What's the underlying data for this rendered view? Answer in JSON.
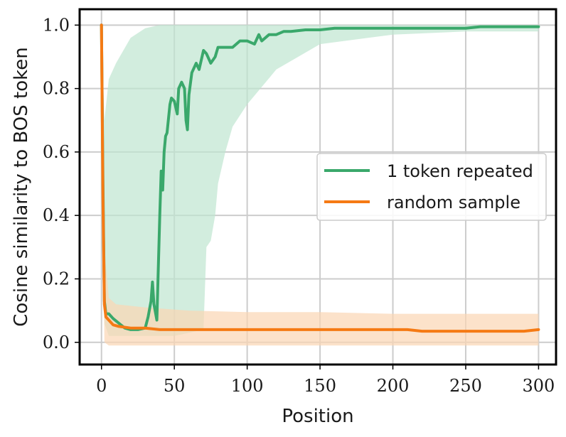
{
  "chart_data": {
    "type": "line",
    "title": "",
    "xlabel": "Position",
    "ylabel": "Cosine similarity to BOS token",
    "xlim": [
      -15,
      312
    ],
    "ylim": [
      -0.07,
      1.05
    ],
    "xticks": [
      0,
      50,
      100,
      150,
      200,
      250,
      300
    ],
    "yticks": [
      0.0,
      0.2,
      0.4,
      0.6,
      0.8,
      1.0
    ],
    "xtick_labels": [
      "0",
      "50",
      "100",
      "150",
      "200",
      "250",
      "300"
    ],
    "ytick_labels": [
      "0.0",
      "0.2",
      "0.4",
      "0.6",
      "0.8",
      "1.0"
    ],
    "grid": true,
    "legend_position": "center-right",
    "series": [
      {
        "name": "1 token repeated",
        "color": "#3aa86b",
        "band_color": "#bfe6d0",
        "x": [
          0,
          1,
          2,
          3,
          5,
          8,
          12,
          16,
          20,
          25,
          30,
          32,
          34,
          35,
          36,
          38,
          40,
          41,
          42,
          43,
          44,
          45,
          47,
          48,
          50,
          52,
          53,
          55,
          57,
          58,
          59,
          60,
          62,
          65,
          67,
          70,
          72,
          75,
          78,
          80,
          85,
          90,
          95,
          100,
          105,
          108,
          110,
          115,
          120,
          125,
          130,
          140,
          150,
          160,
          170,
          180,
          190,
          200,
          210,
          220,
          230,
          240,
          250,
          260,
          270,
          280,
          290,
          300
        ],
        "values": [
          1.0,
          0.5,
          0.13,
          0.09,
          0.09,
          0.075,
          0.06,
          0.045,
          0.04,
          0.04,
          0.045,
          0.08,
          0.13,
          0.19,
          0.12,
          0.07,
          0.4,
          0.54,
          0.48,
          0.6,
          0.65,
          0.66,
          0.75,
          0.77,
          0.76,
          0.72,
          0.8,
          0.82,
          0.8,
          0.7,
          0.67,
          0.78,
          0.85,
          0.88,
          0.86,
          0.92,
          0.91,
          0.88,
          0.9,
          0.93,
          0.93,
          0.93,
          0.95,
          0.95,
          0.94,
          0.97,
          0.95,
          0.97,
          0.97,
          0.98,
          0.98,
          0.985,
          0.985,
          0.99,
          0.99,
          0.99,
          0.99,
          0.99,
          0.99,
          0.99,
          0.99,
          0.99,
          0.99,
          0.995,
          0.995,
          0.995,
          0.995,
          0.995
        ],
        "band_x": [
          0,
          2,
          5,
          10,
          20,
          30,
          40,
          50,
          60,
          70,
          72,
          75,
          78,
          80,
          85,
          90,
          100,
          120,
          150,
          200,
          250,
          300
        ],
        "band_low": [
          1.0,
          0.06,
          0.02,
          0.02,
          0.02,
          0.02,
          0.02,
          0.02,
          0.03,
          0.04,
          0.3,
          0.32,
          0.4,
          0.5,
          0.6,
          0.68,
          0.75,
          0.86,
          0.94,
          0.97,
          0.98,
          0.98
        ],
        "band_high": [
          1.0,
          0.7,
          0.83,
          0.88,
          0.96,
          0.99,
          1.0,
          1.0,
          1.0,
          1.0,
          1.0,
          1.0,
          1.0,
          1.0,
          1.0,
          1.0,
          1.0,
          1.0,
          1.0,
          1.0,
          1.0,
          1.0
        ]
      },
      {
        "name": "random sample",
        "color": "#f57a14",
        "band_color": "#fbd5b4",
        "x": [
          0,
          1,
          2,
          3,
          5,
          8,
          12,
          20,
          30,
          40,
          50,
          60,
          70,
          80,
          90,
          100,
          110,
          120,
          130,
          140,
          150,
          160,
          170,
          180,
          190,
          200,
          210,
          220,
          230,
          240,
          250,
          260,
          270,
          280,
          290,
          300
        ],
        "values": [
          1.0,
          0.45,
          0.12,
          0.08,
          0.07,
          0.055,
          0.05,
          0.045,
          0.045,
          0.04,
          0.04,
          0.04,
          0.04,
          0.04,
          0.04,
          0.04,
          0.04,
          0.04,
          0.04,
          0.04,
          0.04,
          0.04,
          0.04,
          0.04,
          0.04,
          0.04,
          0.04,
          0.035,
          0.035,
          0.035,
          0.035,
          0.035,
          0.035,
          0.035,
          0.035,
          0.04
        ],
        "band_x": [
          0,
          2,
          5,
          10,
          30,
          60,
          100,
          150,
          200,
          250,
          300
        ],
        "band_low": [
          1.0,
          0.0,
          -0.01,
          -0.01,
          -0.01,
          -0.01,
          -0.01,
          -0.01,
          -0.01,
          -0.01,
          -0.01
        ],
        "band_high": [
          1.0,
          0.3,
          0.14,
          0.12,
          0.11,
          0.1,
          0.095,
          0.095,
          0.09,
          0.09,
          0.09
        ]
      }
    ]
  }
}
